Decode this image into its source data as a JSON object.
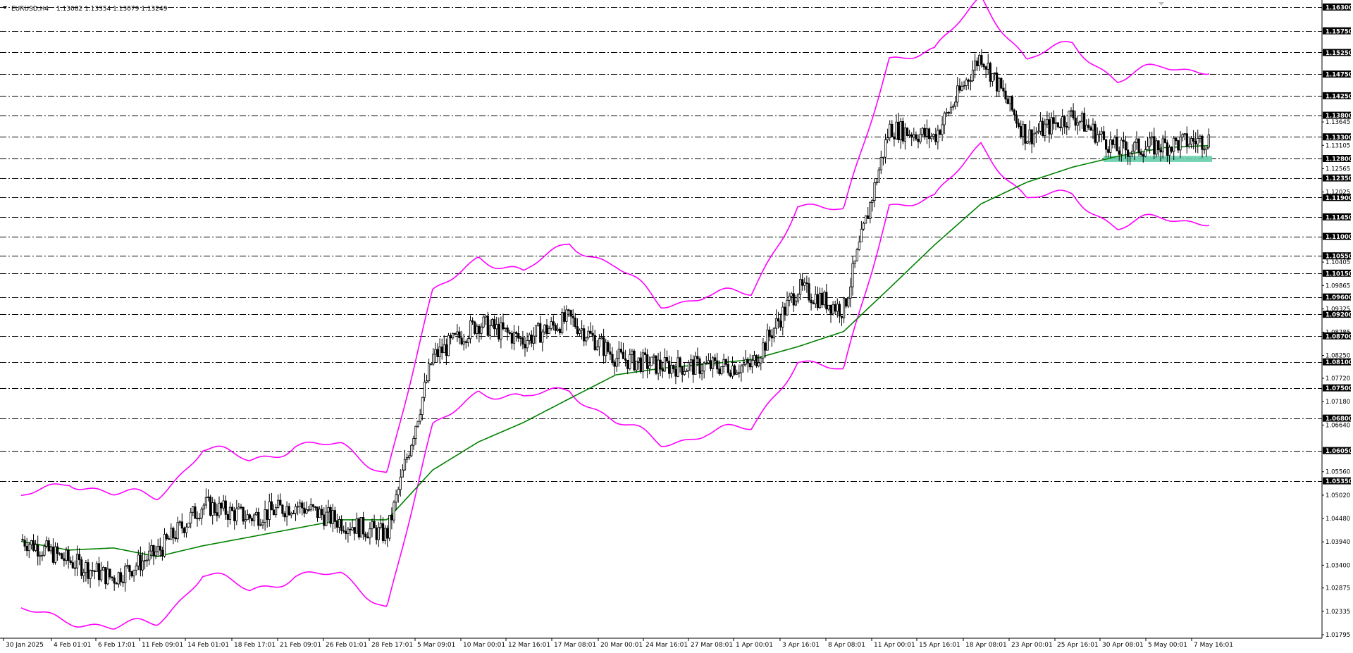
{
  "header": {
    "symbol_tf": "EURUSD,H4",
    "ohlc": "1.13082 1.13354 1.13079 1.13249"
  },
  "colors": {
    "background": "#ffffff",
    "candle": "#000000",
    "bollinger": "#ff00ff",
    "moving_average": "#008000",
    "support_zone": "#66cdaa",
    "level_line": "#000000",
    "level_tag_bg": "#000000",
    "level_tag_text": "#ffffff"
  },
  "chart_data": {
    "type": "candlestick",
    "symbol": "EURUSD",
    "timeframe": "H4",
    "grid": false,
    "ylim": [
      1.01795,
      1.163
    ],
    "x_labels": [
      "30 Jan 2025",
      "4 Feb 01:01",
      "6 Feb 17:01",
      "11 Feb 09:01",
      "14 Feb 01:01",
      "18 Feb 17:01",
      "21 Feb 09:01",
      "26 Feb 01:01",
      "28 Feb 17:01",
      "5 Mar 09:01",
      "10 Mar 00:01",
      "12 Mar 16:01",
      "17 Mar 08:01",
      "20 Mar 00:01",
      "24 Mar 16:01",
      "27 Mar 08:01",
      "1 Apr 00:01",
      "3 Apr 16:01",
      "8 Apr 08:01",
      "11 Apr 00:01",
      "15 Apr 16:01",
      "18 Apr 08:01",
      "23 Apr 00:01",
      "25 Apr 16:01",
      "30 Apr 08:01",
      "5 May 00:01",
      "7 May 16:01"
    ],
    "y_ticks": [
      "1.16300",
      "1.15750",
      "1.15250",
      "1.14750",
      "1.14250",
      "1.13800",
      "1.13645",
      "1.13300",
      "1.13105",
      "1.12800",
      "1.12565",
      "1.12350",
      "1.12025",
      "1.11900",
      "1.11450",
      "1.11000",
      "1.10550",
      "1.10405",
      "1.10150",
      "1.09865",
      "1.09600",
      "1.09325",
      "1.09200",
      "1.08785",
      "1.08700",
      "1.08250",
      "1.08100",
      "1.07720",
      "1.07500",
      "1.07180",
      "1.06800",
      "1.06640",
      "1.06050",
      "1.05560",
      "1.05350",
      "1.05020",
      "1.04480",
      "1.03940",
      "1.03400",
      "1.02875",
      "1.02335",
      "1.01795"
    ],
    "levels": [
      1.163,
      1.1575,
      1.1525,
      1.1475,
      1.1425,
      1.138,
      1.133,
      1.128,
      1.1235,
      1.119,
      1.1145,
      1.11,
      1.1055,
      1.1015,
      1.096,
      1.092,
      1.087,
      1.081,
      1.075,
      1.068,
      1.0605,
      1.0535
    ],
    "current_price": 1.13249,
    "support_zone": {
      "from": "30 Apr 08:01",
      "to": "7 May 16:01",
      "low": 1.1272,
      "high": 1.1286
    },
    "close_path": [
      [
        "30 Jan 2025",
        1.04
      ],
      [
        "4 Feb 01:01",
        1.035
      ],
      [
        "6 Feb 17:01",
        1.031
      ],
      [
        "11 Feb 09:01",
        1.037
      ],
      [
        "14 Feb 01:01",
        1.048
      ],
      [
        "18 Feb 17:01",
        1.045
      ],
      [
        "21 Feb 09:01",
        1.048
      ],
      [
        "26 Feb 01:01",
        1.044
      ],
      [
        "28 Feb 17:01",
        1.041
      ],
      [
        "5 Mar 09:01",
        1.082
      ],
      [
        "10 Mar 00:01",
        1.09
      ],
      [
        "12 Mar 16:01",
        1.086
      ],
      [
        "17 Mar 08:01",
        1.091
      ],
      [
        "20 Mar 00:01",
        1.082
      ],
      [
        "24 Mar 16:01",
        1.08
      ],
      [
        "27 Mar 08:01",
        1.08
      ],
      [
        "1 Apr 00:01",
        1.08
      ],
      [
        "3 Apr 16:01",
        1.098
      ],
      [
        "8 Apr 08:01",
        1.093
      ],
      [
        "11 Apr 00:01",
        1.135
      ],
      [
        "15 Apr 16:01",
        1.133
      ],
      [
        "18 Apr 08:01",
        1.152
      ],
      [
        "23 Apr 00:01",
        1.133
      ],
      [
        "25 Apr 16:01",
        1.138
      ],
      [
        "30 Apr 08:01",
        1.13
      ],
      [
        "5 May 00:01",
        1.131
      ],
      [
        "7 May 16:01",
        1.1325
      ]
    ],
    "series": [
      {
        "name": "",
        "type": "moving-average",
        "points": [
          [
            "30 Jan 2025",
            1.0395
          ],
          [
            "4 Feb 01:01",
            1.0375
          ],
          [
            "6 Feb 17:01",
            1.038
          ],
          [
            "11 Feb 09:01",
            1.036
          ],
          [
            "14 Feb 01:01",
            1.0385
          ],
          [
            "18 Feb 17:01",
            1.0405
          ],
          [
            "21 Feb 09:01",
            1.0425
          ],
          [
            "26 Feb 01:01",
            1.0445
          ],
          [
            "28 Feb 17:01",
            1.0445
          ],
          [
            "5 Mar 09:01",
            1.056
          ],
          [
            "10 Mar 00:01",
            1.0625
          ],
          [
            "12 Mar 16:01",
            1.067
          ],
          [
            "17 Mar 08:01",
            1.0725
          ],
          [
            "20 Mar 00:01",
            1.078
          ],
          [
            "24 Mar 16:01",
            1.0795
          ],
          [
            "27 Mar 08:01",
            1.0805
          ],
          [
            "1 Apr 00:01",
            1.0815
          ],
          [
            "3 Apr 16:01",
            1.0845
          ],
          [
            "8 Apr 08:01",
            1.088
          ],
          [
            "11 Apr 00:01",
            1.098
          ],
          [
            "15 Apr 16:01",
            1.108
          ],
          [
            "18 Apr 08:01",
            1.1175
          ],
          [
            "23 Apr 00:01",
            1.1225
          ],
          [
            "25 Apr 16:01",
            1.126
          ],
          [
            "30 Apr 08:01",
            1.1285
          ],
          [
            "5 May 00:01",
            1.1305
          ],
          [
            "7 May 16:01",
            1.131
          ]
        ]
      },
      {
        "name": "",
        "type": "bollinger-upper",
        "points": [
          [
            "30 Jan 2025",
            1.049
          ],
          [
            "4 Feb 01:01",
            1.054
          ],
          [
            "6 Feb 17:01",
            1.05
          ],
          [
            "11 Feb 09:01",
            1.05
          ],
          [
            "14 Feb 01:01",
            1.061
          ],
          [
            "18 Feb 17:01",
            1.058
          ],
          [
            "21 Feb 09:01",
            1.062
          ],
          [
            "26 Feb 01:01",
            1.061
          ],
          [
            "28 Feb 17:01",
            1.056
          ],
          [
            "5 Mar 09:01",
            1.096
          ],
          [
            "10 Mar 00:01",
            1.106
          ],
          [
            "12 Mar 16:01",
            1.101
          ],
          [
            "17 Mar 08:01",
            1.109
          ],
          [
            "20 Mar 00:01",
            1.103
          ],
          [
            "24 Mar 16:01",
            1.094
          ],
          [
            "27 Mar 08:01",
            1.097
          ],
          [
            "1 Apr 00:01",
            1.096
          ],
          [
            "3 Apr 16:01",
            1.118
          ],
          [
            "8 Apr 08:01",
            1.115
          ],
          [
            "11 Apr 00:01",
            1.152
          ],
          [
            "15 Apr 16:01",
            1.152
          ],
          [
            "18 Apr 08:01",
            1.166
          ],
          [
            "23 Apr 00:01",
            1.15
          ],
          [
            "25 Apr 16:01",
            1.155
          ],
          [
            "30 Apr 08:01",
            1.146
          ],
          [
            "5 May 00:01",
            1.149
          ],
          [
            "7 May 16:01",
            1.149
          ]
        ]
      },
      {
        "name": "",
        "type": "bollinger-lower",
        "points": [
          [
            "30 Jan 2025",
            1.023
          ],
          [
            "4 Feb 01:01",
            1.022
          ],
          [
            "6 Feb 17:01",
            1.019
          ],
          [
            "11 Feb 09:01",
            1.021
          ],
          [
            "14 Feb 01:01",
            1.032
          ],
          [
            "18 Feb 17:01",
            1.028
          ],
          [
            "21 Feb 09:01",
            1.032
          ],
          [
            "26 Feb 01:01",
            1.031
          ],
          [
            "28 Feb 17:01",
            1.025
          ],
          [
            "5 Mar 09:01",
            1.065
          ],
          [
            "10 Mar 00:01",
            1.075
          ],
          [
            "12 Mar 16:01",
            1.072
          ],
          [
            "17 Mar 08:01",
            1.075
          ],
          [
            "20 Mar 00:01",
            1.067
          ],
          [
            "24 Mar 16:01",
            1.062
          ],
          [
            "27 Mar 08:01",
            1.065
          ],
          [
            "1 Apr 00:01",
            1.065
          ],
          [
            "3 Apr 16:01",
            1.082
          ],
          [
            "8 Apr 08:01",
            1.078
          ],
          [
            "11 Apr 00:01",
            1.118
          ],
          [
            "15 Apr 16:01",
            1.118
          ],
          [
            "18 Apr 08:01",
            1.132
          ],
          [
            "23 Apr 00:01",
            1.118
          ],
          [
            "25 Apr 16:01",
            1.12
          ],
          [
            "30 Apr 08:01",
            1.112
          ],
          [
            "5 May 00:01",
            1.114
          ],
          [
            "7 May 16:01",
            1.114
          ]
        ]
      }
    ]
  }
}
